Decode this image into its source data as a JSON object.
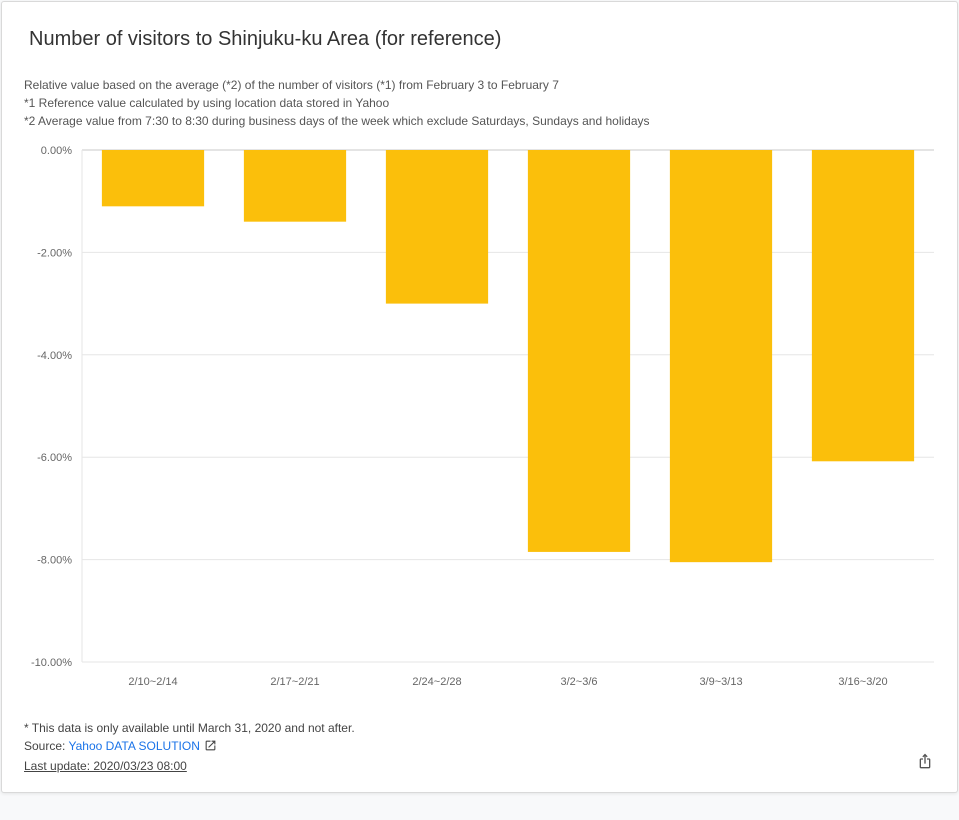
{
  "card": {
    "title": "Number of visitors to Shinjuku-ku Area (for reference)",
    "notes": [
      "Relative value based on the average (*2) of the number of visitors (*1) from February 3 to February 7",
      "*1 Reference value calculated by using location data stored in Yahoo",
      "*2 Average value from 7:30 to 8:30 during business days of the week which exclude Saturdays, Sundays and holidays"
    ],
    "footer": {
      "availability_note": "* This data is only available until March 31, 2020 and not after.",
      "source_label": "Source: ",
      "source_link_text": "Yahoo DATA SOLUTION",
      "last_update": "Last update: 2020/03/23 08:00"
    },
    "share_icon": "share-icon",
    "external_link_icon": "external-link-icon"
  },
  "chart_data": {
    "type": "bar",
    "title": "Number of visitors to Shinjuku-ku Area (for reference)",
    "categories": [
      "2/10~2/14",
      "2/17~2/21",
      "2/24~2/28",
      "3/2~3/6",
      "3/9~3/13",
      "3/16~3/20"
    ],
    "values": [
      -1.1,
      -1.4,
      -3.0,
      -7.85,
      -8.05,
      -6.08
    ],
    "ylim": [
      -10,
      0
    ],
    "yticks": [
      0,
      -2,
      -4,
      -6,
      -8,
      -10
    ],
    "ytick_labels": [
      "0.00%",
      "-2.00%",
      "-4.00%",
      "-6.00%",
      "-8.00%",
      "-10.00%"
    ],
    "xlabel": "",
    "ylabel": "",
    "grid": true,
    "bar_color": "#fbbf0b"
  }
}
